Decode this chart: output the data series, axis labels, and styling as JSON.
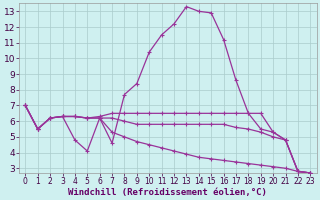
{
  "xlabel": "Windchill (Refroidissement éolien,°C)",
  "bg_color": "#cff0f0",
  "grid_color": "#aacccc",
  "line_color": "#993399",
  "xlim": [
    -0.5,
    23.5
  ],
  "ylim": [
    2.7,
    13.5
  ],
  "xticks": [
    0,
    1,
    2,
    3,
    4,
    5,
    6,
    7,
    8,
    9,
    10,
    11,
    12,
    13,
    14,
    15,
    16,
    17,
    18,
    19,
    20,
    21,
    22,
    23
  ],
  "yticks": [
    3,
    4,
    5,
    6,
    7,
    8,
    9,
    10,
    11,
    12,
    13
  ],
  "series": [
    [
      7.0,
      5.5,
      6.2,
      6.3,
      4.8,
      4.1,
      6.2,
      4.6,
      7.7,
      8.4,
      10.4,
      11.5,
      12.2,
      13.3,
      13.0,
      12.9,
      11.2,
      8.6,
      6.5,
      5.5,
      5.3,
      4.8,
      2.8,
      2.7
    ],
    [
      7.0,
      5.5,
      6.2,
      6.3,
      6.3,
      6.2,
      6.3,
      6.5,
      6.5,
      6.5,
      6.5,
      6.5,
      6.5,
      6.5,
      6.5,
      6.5,
      6.5,
      6.5,
      6.5,
      6.5,
      5.3,
      4.8,
      2.8,
      2.7
    ],
    [
      7.0,
      5.5,
      6.2,
      6.3,
      6.3,
      6.2,
      6.2,
      6.2,
      6.0,
      5.8,
      5.8,
      5.8,
      5.8,
      5.8,
      5.8,
      5.8,
      5.8,
      5.6,
      5.5,
      5.3,
      5.0,
      4.8,
      2.8,
      2.7
    ],
    [
      7.0,
      5.5,
      6.2,
      6.3,
      6.3,
      6.2,
      6.2,
      5.3,
      5.0,
      4.7,
      4.5,
      4.3,
      4.1,
      3.9,
      3.7,
      3.6,
      3.5,
      3.4,
      3.3,
      3.2,
      3.1,
      3.0,
      2.8,
      2.7
    ]
  ],
  "xlabel_color": "#660066",
  "xlabel_fontsize": 6.5,
  "tick_fontsize_x": 5.5,
  "tick_fontsize_y": 6.5
}
